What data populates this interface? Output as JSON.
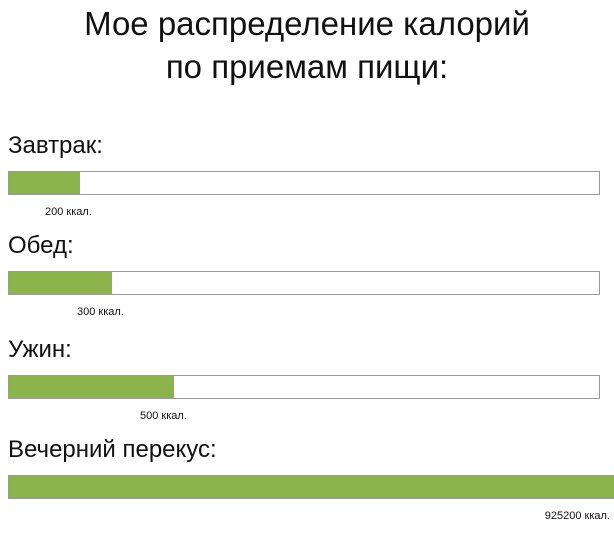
{
  "title_line1": "Мое распределение калорий",
  "title_line2": "по приемам пищи:",
  "bar_color": "#8ab34a",
  "meals": [
    {
      "label": "Завтрак:",
      "value_label": "200 ккал.",
      "fill_fraction": 0.12
    },
    {
      "label": "Обед:",
      "value_label": "300 ккал.",
      "fill_fraction": 0.175
    },
    {
      "label": "Ужин:",
      "value_label": "500 ккал.",
      "fill_fraction": 0.28
    },
    {
      "label": "Вечерний перекус:",
      "value_label": "925200 ккал.",
      "fill_fraction": 1.0
    }
  ]
}
